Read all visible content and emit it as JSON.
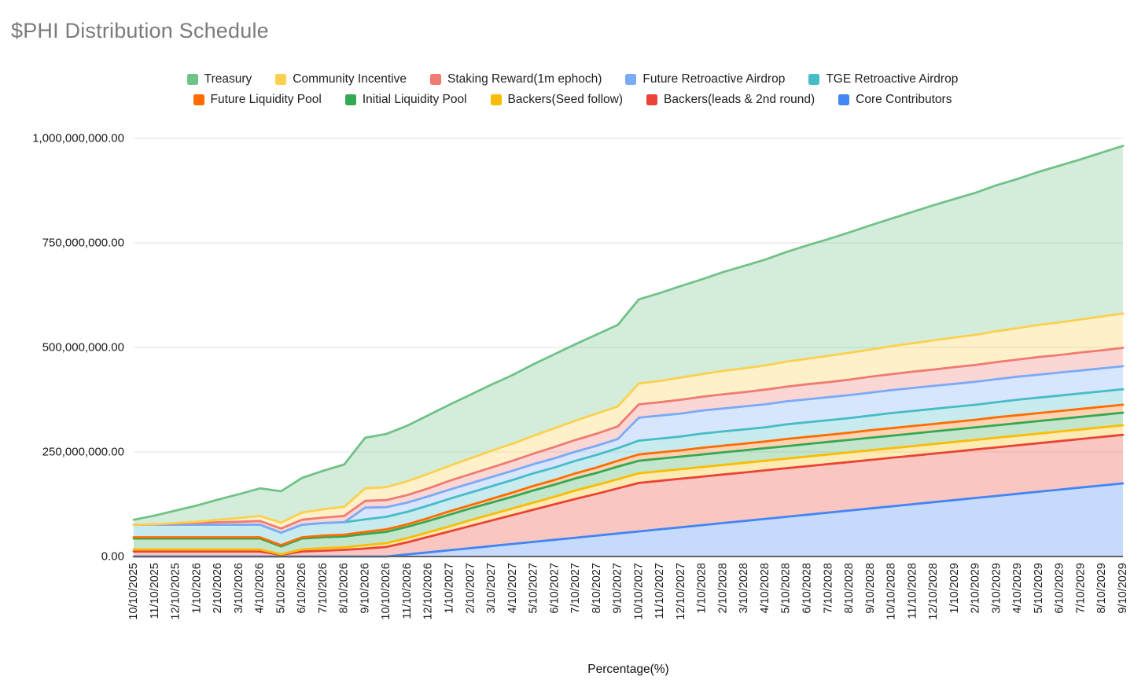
{
  "title": "$PHI Distribution Schedule",
  "chart_data": {
    "type": "area",
    "stacked": true,
    "title": "$PHI Distribution Schedule",
    "x_axis_title": "Percentage(%)",
    "grid": "horizontal",
    "legend_position": "top",
    "values_unit": "tokens, stored in millions",
    "ylim_millions": [
      0,
      1000
    ],
    "y_ticks": [
      "0.00",
      "250,000,000.00",
      "500,000,000.00",
      "750,000,000.00",
      "1,000,000,000.00"
    ],
    "y_tick_values_millions": [
      0,
      250,
      500,
      750,
      1000
    ],
    "x": [
      "10/10/2025",
      "11/10/2025",
      "12/10/2025",
      "1/10/2026",
      "2/10/2026",
      "3/10/2026",
      "4/10/2026",
      "5/10/2026",
      "6/10/2026",
      "7/10/2026",
      "8/10/2026",
      "9/10/2026",
      "10/10/2026",
      "11/10/2026",
      "12/10/2026",
      "1/10/2027",
      "2/10/2027",
      "3/10/2027",
      "4/10/2027",
      "5/10/2027",
      "6/10/2027",
      "7/10/2027",
      "8/10/2027",
      "9/10/2027",
      "10/10/2027",
      "11/10/2027",
      "12/10/2027",
      "1/10/2028",
      "2/10/2028",
      "3/10/2028",
      "4/10/2028",
      "5/10/2028",
      "6/10/2028",
      "7/10/2028",
      "8/10/2028",
      "9/10/2028",
      "10/10/2028",
      "11/10/2028",
      "12/10/2028",
      "1/10/2029",
      "2/10/2029",
      "3/10/2029",
      "4/10/2029",
      "5/10/2029",
      "6/10/2029",
      "7/10/2029",
      "8/10/2029",
      "9/10/2029"
    ],
    "series": [
      {
        "name": "Core Contributors",
        "color": "#4285f4",
        "values": [
          0,
          0,
          0,
          0,
          0,
          0,
          0,
          0,
          0,
          0,
          0,
          0,
          0,
          5,
          10,
          15,
          20,
          25,
          30,
          35,
          40,
          45,
          50,
          55,
          60,
          65,
          70,
          75,
          80,
          85,
          90,
          95,
          100,
          105,
          110,
          115,
          120,
          125,
          130,
          135,
          140,
          145,
          150,
          155,
          160,
          165,
          170,
          175
        ]
      },
      {
        "name": "Backers(leads & 2nd round)",
        "color": "#ea4335",
        "values": [
          12,
          12,
          12,
          12,
          12,
          12,
          12,
          4,
          12,
          14,
          16,
          19,
          23,
          29,
          37,
          45,
          53,
          61,
          69,
          77,
          85,
          93,
          100,
          108,
          116,
          116,
          116,
          116,
          116,
          116,
          116,
          116,
          116,
          116,
          116,
          116,
          116,
          116,
          116,
          116,
          116,
          116,
          116,
          116,
          116,
          116,
          116,
          116
        ]
      },
      {
        "name": "Backers(Seed follow)",
        "color": "#fbbc04",
        "values": [
          5,
          5,
          5,
          5,
          5,
          5,
          5,
          1,
          5,
          6,
          6,
          8,
          9,
          10,
          11,
          12,
          14,
          15,
          16,
          17,
          18,
          20,
          21,
          22,
          23,
          23,
          23,
          23,
          23,
          23,
          23,
          23,
          23,
          23,
          23,
          23,
          23,
          23,
          23,
          23,
          23,
          23,
          23,
          23,
          23,
          23,
          23,
          23
        ]
      },
      {
        "name": "Initial Liquidity Pool",
        "color": "#34a853",
        "values": [
          26,
          26,
          26,
          26,
          26,
          26,
          26,
          19,
          26,
          26,
          26,
          27,
          27,
          27,
          27,
          28,
          28,
          28,
          28,
          29,
          29,
          29,
          29,
          30,
          30,
          30,
          30,
          30,
          30,
          30,
          30,
          30,
          30,
          30,
          30,
          30,
          30,
          30,
          30,
          30,
          30,
          30,
          30,
          30,
          30,
          30,
          30,
          30
        ]
      },
      {
        "name": "Future Liquidity Pool",
        "color": "#ff6d01",
        "values": [
          3,
          3,
          3,
          3,
          3,
          3,
          3,
          3,
          3,
          4,
          4,
          5,
          6,
          6,
          7,
          8,
          8,
          9,
          10,
          11,
          11,
          12,
          13,
          14,
          15,
          15,
          15,
          16,
          16,
          16,
          16,
          17,
          17,
          17,
          17,
          18,
          18,
          18,
          18,
          18,
          18,
          19,
          19,
          19,
          19,
          19,
          19,
          19
        ]
      },
      {
        "name": "TGE Retroactive Airdrop",
        "color": "#46bdc6",
        "values": [
          30,
          30,
          30,
          30,
          30,
          30,
          30,
          30,
          30,
          30,
          30,
          30,
          30,
          30,
          30,
          30,
          30,
          30,
          30,
          30,
          30,
          30,
          30,
          30,
          33,
          33,
          33,
          34,
          34,
          34,
          34,
          35,
          35,
          35,
          35,
          35,
          36,
          36,
          36,
          36,
          36,
          36,
          37,
          37,
          37,
          37,
          37,
          37
        ]
      },
      {
        "name": "Future Retroactive Airdrop",
        "color": "#7baaf7",
        "values": [
          0,
          0,
          0,
          0,
          0,
          0,
          0,
          0,
          0,
          0,
          0,
          28,
          23,
          22,
          22,
          22,
          22,
          22,
          22,
          22,
          22,
          22,
          22,
          22,
          55,
          55,
          55,
          55,
          55,
          55,
          55,
          55,
          55,
          55,
          55,
          55,
          55,
          55,
          55,
          55,
          55,
          55,
          55,
          55,
          55,
          55,
          55,
          55
        ]
      },
      {
        "name": "Staking Reward(1m ephoch)",
        "color": "#f07b72",
        "values": [
          0,
          1,
          3,
          4,
          6,
          7,
          9,
          10,
          12,
          13,
          15,
          16,
          17,
          18,
          19,
          21,
          22,
          23,
          24,
          25,
          27,
          28,
          29,
          30,
          32,
          32,
          33,
          33,
          34,
          34,
          35,
          35,
          36,
          36,
          37,
          38,
          38,
          39,
          39,
          40,
          40,
          41,
          41,
          42,
          42,
          43,
          43,
          44
        ]
      },
      {
        "name": "Community Incentive",
        "color": "#fcd04f",
        "values": [
          0,
          0,
          1,
          3,
          6,
          9,
          12,
          14,
          17,
          20,
          22,
          30,
          31,
          33,
          35,
          36,
          38,
          40,
          41,
          43,
          45,
          46,
          48,
          48,
          50,
          51,
          53,
          54,
          56,
          57,
          58,
          60,
          61,
          63,
          64,
          65,
          67,
          68,
          70,
          71,
          72,
          74,
          75,
          77,
          78,
          79,
          81,
          82
        ]
      },
      {
        "name": "Treasury",
        "color": "#71c287",
        "values": [
          12,
          21,
          30,
          39,
          48,
          57,
          66,
          75,
          83,
          92,
          101,
          121,
          127,
          133,
          140,
          146,
          152,
          158,
          164,
          171,
          177,
          183,
          189,
          195,
          201,
          210,
          219,
          227,
          236,
          245,
          253,
          262,
          271,
          279,
          288,
          297,
          305,
          314,
          323,
          331,
          340,
          349,
          357,
          366,
          375,
          383,
          392,
          401
        ]
      }
    ],
    "legend_order": [
      9,
      8,
      7,
      6,
      5,
      4,
      3,
      2,
      1,
      0
    ],
    "legend_rows": [
      5,
      5
    ]
  },
  "styles": {
    "title_color": "#7b7b7b",
    "axis_line_color": "#616161",
    "gridline_color": "#e2e2e2",
    "tick_label_color": "#1a1a1a",
    "fill_opacity": 0.3,
    "stroke_width": 2.8,
    "background": "#ffffff"
  }
}
